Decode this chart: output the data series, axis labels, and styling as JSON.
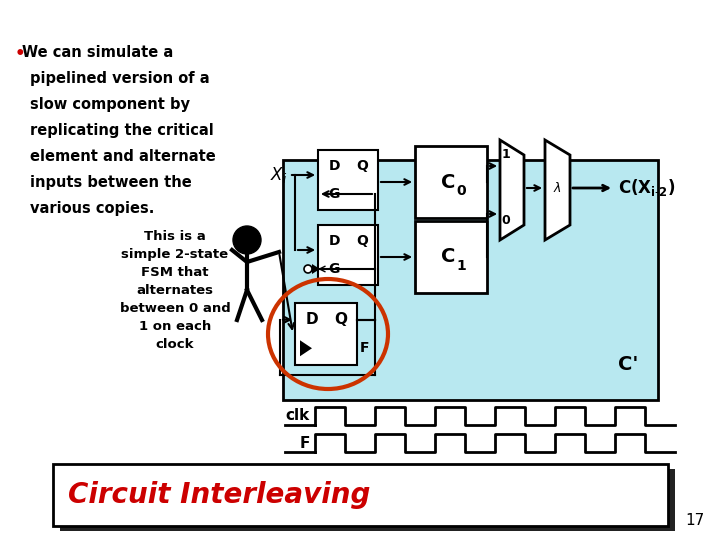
{
  "title": "Circuit Interleaving",
  "background_color": "#ffffff",
  "title_color": "#cc0000",
  "bullet_text_lines": [
    "We can simulate a",
    "pipelined version of a",
    "slow component by",
    "replicating the critical",
    "element and alternate",
    "inputs between the",
    "various copies."
  ],
  "fsm_text_lines": [
    "This is a",
    "simple 2-state",
    "FSM that",
    "alternates",
    "between 0 and",
    "1 on each",
    "clock"
  ],
  "circuit_bg": "#b8e8f0",
  "page_number": "17",
  "clk_label": "clk",
  "f_label": "F"
}
